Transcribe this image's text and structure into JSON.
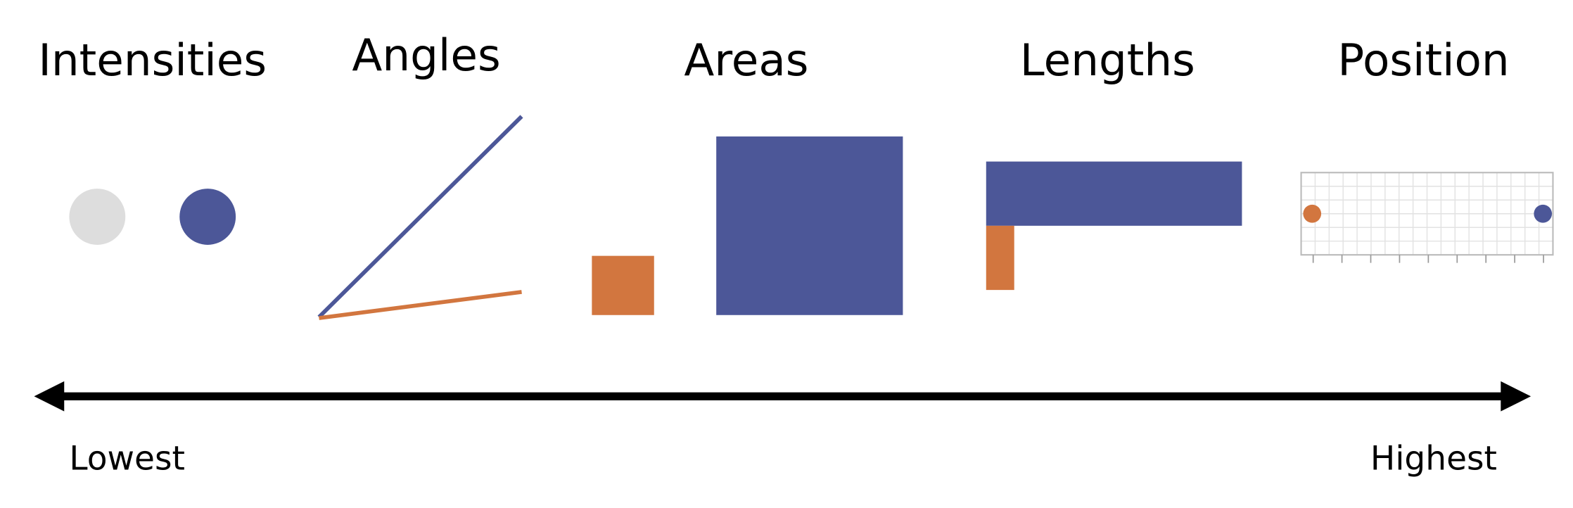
{
  "titles": [
    "Intensities",
    "Angles",
    "Areas",
    "Lengths",
    "Position"
  ],
  "scale": {
    "low": "Lowest",
    "high": "Highest"
  }
}
